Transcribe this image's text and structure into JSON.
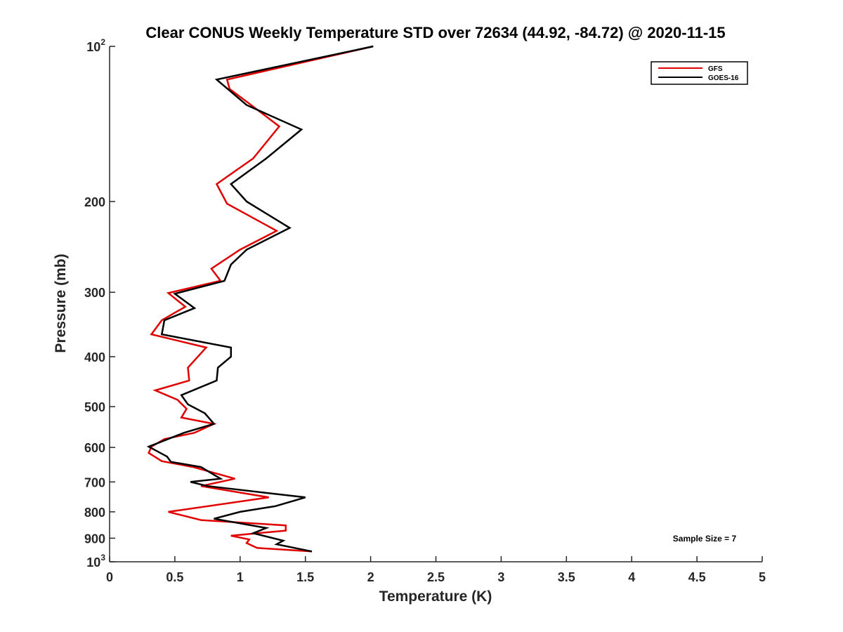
{
  "chart_data": {
    "type": "line",
    "title": "Clear CONUS Weekly Temperature STD over 72634 (44.92, -84.72) @ 2020-11-15",
    "xlabel": "Temperature (K)",
    "ylabel": "Pressure (mb)",
    "xlim": [
      0,
      5
    ],
    "ylim": [
      100,
      1000
    ],
    "yscale": "log",
    "yreversed": true,
    "x_ticks": [
      "0",
      "0.5",
      "1",
      "1.5",
      "2",
      "2.5",
      "3",
      "3.5",
      "4",
      "4.5",
      "5"
    ],
    "x_tick_values": [
      0,
      0.5,
      1,
      1.5,
      2,
      2.5,
      3,
      3.5,
      4,
      4.5,
      5
    ],
    "y_ticks": [
      {
        "value": 100,
        "base": "10",
        "exp": "2"
      },
      {
        "value": 200,
        "label": "200"
      },
      {
        "value": 300,
        "label": "300"
      },
      {
        "value": 400,
        "label": "400"
      },
      {
        "value": 500,
        "label": "500"
      },
      {
        "value": 600,
        "label": "600"
      },
      {
        "value": 700,
        "label": "700"
      },
      {
        "value": 800,
        "label": "800"
      },
      {
        "value": 900,
        "label": "900"
      },
      {
        "value": 1000,
        "base": "10",
        "exp": "3"
      }
    ],
    "legend_position": "top-right",
    "annotation": "Sample Size = 7",
    "series": [
      {
        "name": "GFS",
        "color": "#e00000",
        "points": [
          [
            2.02,
            100
          ],
          [
            1.3,
            110
          ],
          [
            0.9,
            116
          ],
          [
            0.92,
            121
          ],
          [
            1.05,
            128
          ],
          [
            1.3,
            143
          ],
          [
            1.1,
            165
          ],
          [
            0.82,
            185
          ],
          [
            0.9,
            202
          ],
          [
            1.28,
            228
          ],
          [
            1.0,
            248
          ],
          [
            0.78,
            270
          ],
          [
            0.85,
            285
          ],
          [
            0.45,
            301
          ],
          [
            0.58,
            320
          ],
          [
            0.4,
            340
          ],
          [
            0.32,
            362
          ],
          [
            0.74,
            384
          ],
          [
            0.6,
            420
          ],
          [
            0.61,
            445
          ],
          [
            0.35,
            465
          ],
          [
            0.52,
            485
          ],
          [
            0.59,
            505
          ],
          [
            0.55,
            525
          ],
          [
            0.8,
            540
          ],
          [
            0.65,
            562
          ],
          [
            0.42,
            578
          ],
          [
            0.32,
            598
          ],
          [
            0.3,
            615
          ],
          [
            0.4,
            638
          ],
          [
            0.64,
            655
          ],
          [
            0.96,
            690
          ],
          [
            0.7,
            713
          ],
          [
            1.22,
            750
          ],
          [
            0.45,
            800
          ],
          [
            0.7,
            830
          ],
          [
            1.35,
            850
          ],
          [
            1.35,
            870
          ],
          [
            0.93,
            890
          ],
          [
            1.07,
            905
          ],
          [
            1.05,
            920
          ],
          [
            1.13,
            940
          ],
          [
            1.55,
            955
          ]
        ]
      },
      {
        "name": "GOES-16",
        "color": "#000000",
        "points": [
          [
            2.02,
            100
          ],
          [
            0.82,
            116
          ],
          [
            1.05,
            130
          ],
          [
            1.47,
            145
          ],
          [
            1.2,
            165
          ],
          [
            0.93,
            185
          ],
          [
            1.05,
            200
          ],
          [
            1.38,
            225
          ],
          [
            1.05,
            248
          ],
          [
            0.93,
            265
          ],
          [
            0.88,
            285
          ],
          [
            0.5,
            302
          ],
          [
            0.65,
            322
          ],
          [
            0.42,
            340
          ],
          [
            0.4,
            362
          ],
          [
            0.93,
            384
          ],
          [
            0.93,
            400
          ],
          [
            0.83,
            420
          ],
          [
            0.82,
            445
          ],
          [
            0.55,
            475
          ],
          [
            0.6,
            495
          ],
          [
            0.73,
            515
          ],
          [
            0.8,
            540
          ],
          [
            0.57,
            562
          ],
          [
            0.3,
            598
          ],
          [
            0.44,
            625
          ],
          [
            0.47,
            640
          ],
          [
            0.7,
            655
          ],
          [
            0.85,
            690
          ],
          [
            0.62,
            700
          ],
          [
            0.75,
            713
          ],
          [
            1.5,
            750
          ],
          [
            1.27,
            780
          ],
          [
            1.0,
            800
          ],
          [
            0.8,
            825
          ],
          [
            1.2,
            860
          ],
          [
            1.1,
            880
          ],
          [
            1.33,
            910
          ],
          [
            1.28,
            925
          ],
          [
            1.55,
            955
          ]
        ]
      }
    ]
  }
}
